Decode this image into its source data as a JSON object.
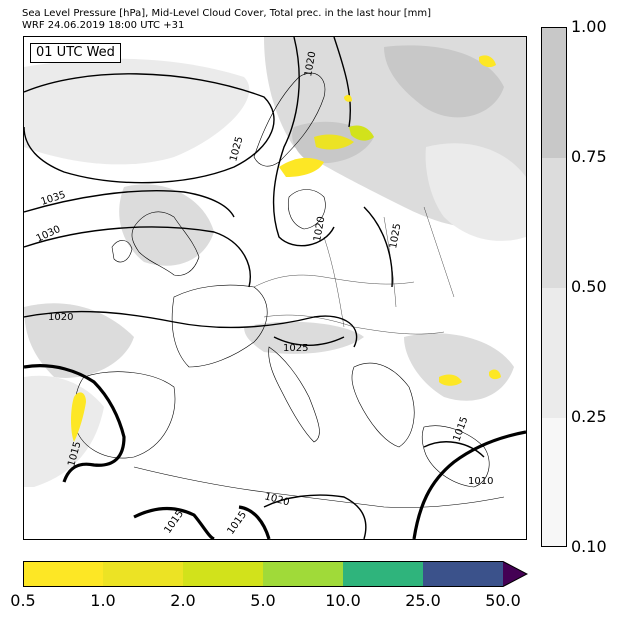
{
  "header": {
    "title_line1": "Sea Level Pressure [hPa], Mid-Level Cloud Cover, Total prec. in the last hour [mm]",
    "title_line2": "WRF 24.06.2019 18:00 UTC +31"
  },
  "map": {
    "time_label": "01 UTC Wed",
    "isobar_labels": [
      "1020",
      "1025",
      "1035",
      "1030",
      "1020",
      "1025",
      "1020",
      "1025",
      "1015",
      "1020",
      "1015",
      "1015",
      "1015",
      "1010"
    ]
  },
  "cloud_cover_scale": {
    "ticks": [
      "1.00",
      "0.75",
      "0.50",
      "0.25",
      "0.10"
    ],
    "colors": [
      "#c8c8c8",
      "#dcdcdc",
      "#ebebeb",
      "#f7f7f7"
    ]
  },
  "precip_scale": {
    "ticks": [
      "0.5",
      "1.0",
      "2.0",
      "5.0",
      "10.0",
      "25.0",
      "50.0"
    ],
    "colors": [
      "#fde725",
      "#ece324",
      "#d2e21b",
      "#a0da39",
      "#2fb47c",
      "#3b528b",
      "#440154"
    ]
  }
}
